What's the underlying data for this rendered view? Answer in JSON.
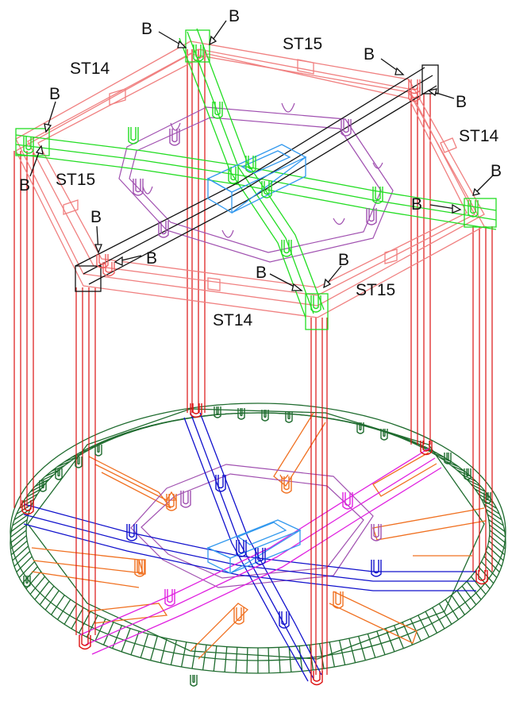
{
  "labels": {
    "st14_top_left": "ST14",
    "st15_top": "ST15",
    "st14_right": "ST14",
    "st15_left": "ST15",
    "st15_right": "ST15",
    "st14_bottom": "ST14"
  },
  "bracket_label": "B",
  "colors": {
    "frame_pink": "#f08080",
    "post_red": "#dd1111",
    "beam_green": "#22dd22",
    "beam_black": "#111111",
    "hub_blue": "#3399ee",
    "violet": "#a050b0",
    "ring_green": "#1e6b2e",
    "orange": "#f07020",
    "blue": "#1010cc",
    "magenta": "#e020e0"
  }
}
